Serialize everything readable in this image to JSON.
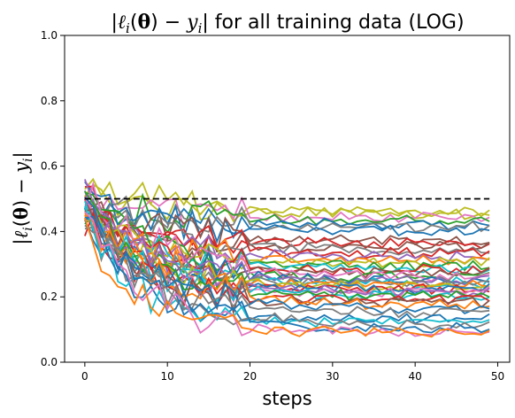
{
  "chart_data": {
    "type": "line",
    "title": "|ℓᵢ(θ) − yᵢ| for all training data (LOG)",
    "xlabel": "steps",
    "ylabel": "|ℓᵢ(θ) − yᵢ|",
    "xlim": [
      -2.45,
      51.45
    ],
    "ylim": [
      0.0,
      1.0
    ],
    "xticks": [
      0,
      10,
      20,
      30,
      40,
      50
    ],
    "yticks": [
      0.0,
      0.2,
      0.4,
      0.6,
      0.8,
      1.0
    ],
    "xtick_labels": [
      "0",
      "10",
      "20",
      "30",
      "40",
      "50"
    ],
    "ytick_labels": [
      "0.0",
      "0.2",
      "0.4",
      "0.6",
      "0.8",
      "1.0"
    ],
    "grid": false,
    "legend": "none",
    "threshold": {
      "y": 0.5,
      "x_range": [
        0,
        49
      ],
      "style": "dashed",
      "color": "#000000"
    },
    "steps": 50,
    "palette": [
      "#1f77b4",
      "#ff7f0e",
      "#2ca02c",
      "#d62728",
      "#9467bd",
      "#8c564b",
      "#e377c2",
      "#7f7f7f",
      "#bcbd22",
      "#17becf"
    ],
    "series_profiles": [
      {
        "start": 0.53,
        "end": 0.45,
        "color": "#bcbd22"
      },
      {
        "start": 0.5,
        "end": 0.46,
        "color": "#bcbd22"
      },
      {
        "start": 0.52,
        "end": 0.44,
        "color": "#e377c2"
      },
      {
        "start": 0.49,
        "end": 0.43,
        "color": "#2ca02c"
      },
      {
        "start": 0.5,
        "end": 0.42,
        "color": "#1f77b4"
      },
      {
        "start": 0.47,
        "end": 0.41,
        "color": "#7f7f7f"
      },
      {
        "start": 0.51,
        "end": 0.4,
        "color": "#1f77b4"
      },
      {
        "start": 0.48,
        "end": 0.37,
        "color": "#8c564b"
      },
      {
        "start": 0.5,
        "end": 0.36,
        "color": "#d62728"
      },
      {
        "start": 0.46,
        "end": 0.35,
        "color": "#8c564b"
      },
      {
        "start": 0.49,
        "end": 0.34,
        "color": "#7f7f7f"
      },
      {
        "start": 0.47,
        "end": 0.33,
        "color": "#d62728"
      },
      {
        "start": 0.52,
        "end": 0.32,
        "color": "#9467bd"
      },
      {
        "start": 0.45,
        "end": 0.31,
        "color": "#ff7f0e"
      },
      {
        "start": 0.48,
        "end": 0.3,
        "color": "#bcbd22"
      },
      {
        "start": 0.5,
        "end": 0.29,
        "color": "#2ca02c"
      },
      {
        "start": 0.44,
        "end": 0.28,
        "color": "#17becf"
      },
      {
        "start": 0.47,
        "end": 0.28,
        "color": "#d62728"
      },
      {
        "start": 0.49,
        "end": 0.27,
        "color": "#8c564b"
      },
      {
        "start": 0.46,
        "end": 0.26,
        "color": "#2ca02c"
      },
      {
        "start": 0.51,
        "end": 0.26,
        "color": "#e377c2"
      },
      {
        "start": 0.43,
        "end": 0.25,
        "color": "#1f77b4"
      },
      {
        "start": 0.48,
        "end": 0.25,
        "color": "#9467bd"
      },
      {
        "start": 0.45,
        "end": 0.24,
        "color": "#17becf"
      },
      {
        "start": 0.5,
        "end": 0.24,
        "color": "#7f7f7f"
      },
      {
        "start": 0.44,
        "end": 0.23,
        "color": "#ff7f0e"
      },
      {
        "start": 0.47,
        "end": 0.23,
        "color": "#bcbd22"
      },
      {
        "start": 0.49,
        "end": 0.22,
        "color": "#d62728"
      },
      {
        "start": 0.42,
        "end": 0.22,
        "color": "#1f77b4"
      },
      {
        "start": 0.46,
        "end": 0.21,
        "color": "#e377c2"
      },
      {
        "start": 0.48,
        "end": 0.21,
        "color": "#9467bd"
      },
      {
        "start": 0.45,
        "end": 0.2,
        "color": "#17becf"
      },
      {
        "start": 0.5,
        "end": 0.2,
        "color": "#2ca02c"
      },
      {
        "start": 0.43,
        "end": 0.19,
        "color": "#d62728"
      },
      {
        "start": 0.47,
        "end": 0.18,
        "color": "#8c564b"
      },
      {
        "start": 0.44,
        "end": 0.17,
        "color": "#ff7f0e"
      },
      {
        "start": 0.46,
        "end": 0.16,
        "color": "#1f77b4"
      },
      {
        "start": 0.42,
        "end": 0.15,
        "color": "#7f7f7f"
      },
      {
        "start": 0.45,
        "end": 0.13,
        "color": "#1f77b4"
      },
      {
        "start": 0.48,
        "end": 0.12,
        "color": "#17becf"
      },
      {
        "start": 0.43,
        "end": 0.11,
        "color": "#7f7f7f"
      },
      {
        "start": 0.47,
        "end": 0.1,
        "color": "#1f77b4"
      },
      {
        "start": 0.44,
        "end": 0.09,
        "color": "#e377c2"
      },
      {
        "start": 0.41,
        "end": 0.09,
        "color": "#ff7f0e"
      }
    ]
  }
}
